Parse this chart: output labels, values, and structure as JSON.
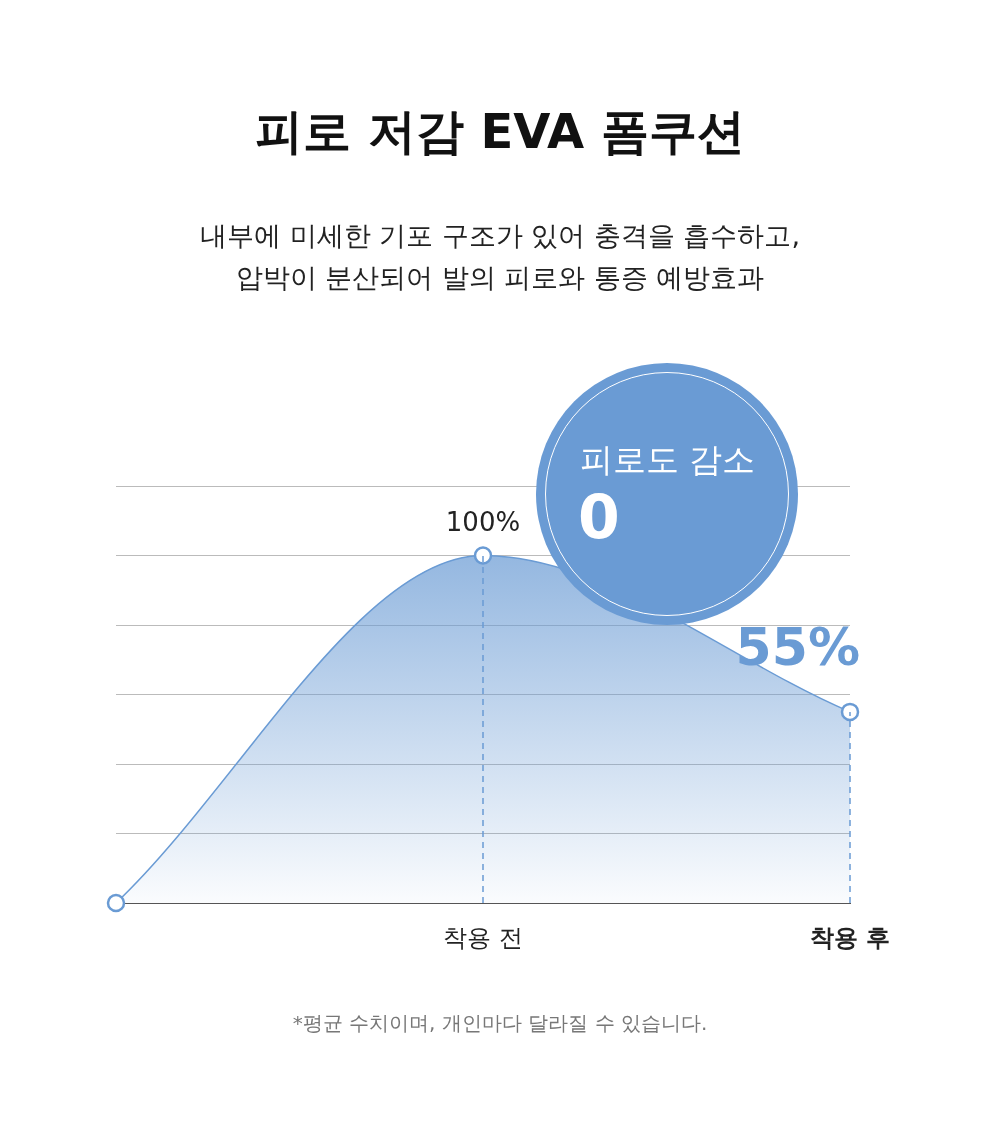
{
  "chart_data": {
    "type": "area",
    "title": "피로 저감 EVA 폼쿠션",
    "subtitle": "내부에 미세한 기포 구조가 있어 충격을 흡수하고,\n압박이 분산되어 발의 피로와 통증 예방효과",
    "categories": [
      null,
      "착용 전",
      "착용 후"
    ],
    "values": [
      0,
      100,
      55
    ],
    "value_labels": [
      null,
      "100%",
      "55%"
    ],
    "color": "#6a9bd4",
    "ylim": [
      0,
      120
    ],
    "yticks": [
      {
        "value": 0,
        "label": null
      },
      {
        "value": 20,
        "label": null
      },
      {
        "value": 40,
        "label": null
      },
      {
        "value": 60,
        "label": null
      },
      {
        "value": 80,
        "label": null
      },
      {
        "value": 100,
        "label": null
      },
      {
        "value": 120,
        "label": null
      }
    ],
    "grid": "y",
    "tick_labels": "x",
    "legend": false,
    "marker": "circle",
    "ref_lines": [
      {
        "axis": "x",
        "value": "착용 전",
        "line_style": "dashed",
        "color": "#6a9bd4"
      },
      {
        "axis": "x",
        "value": "착용 후",
        "line_style": "dashed",
        "color": "#6a9bd4"
      }
    ],
    "annotations": [
      "피로도 감소",
      "0",
      "*평균 수치이며, 개인마다 달라질 수 있습니다."
    ]
  }
}
